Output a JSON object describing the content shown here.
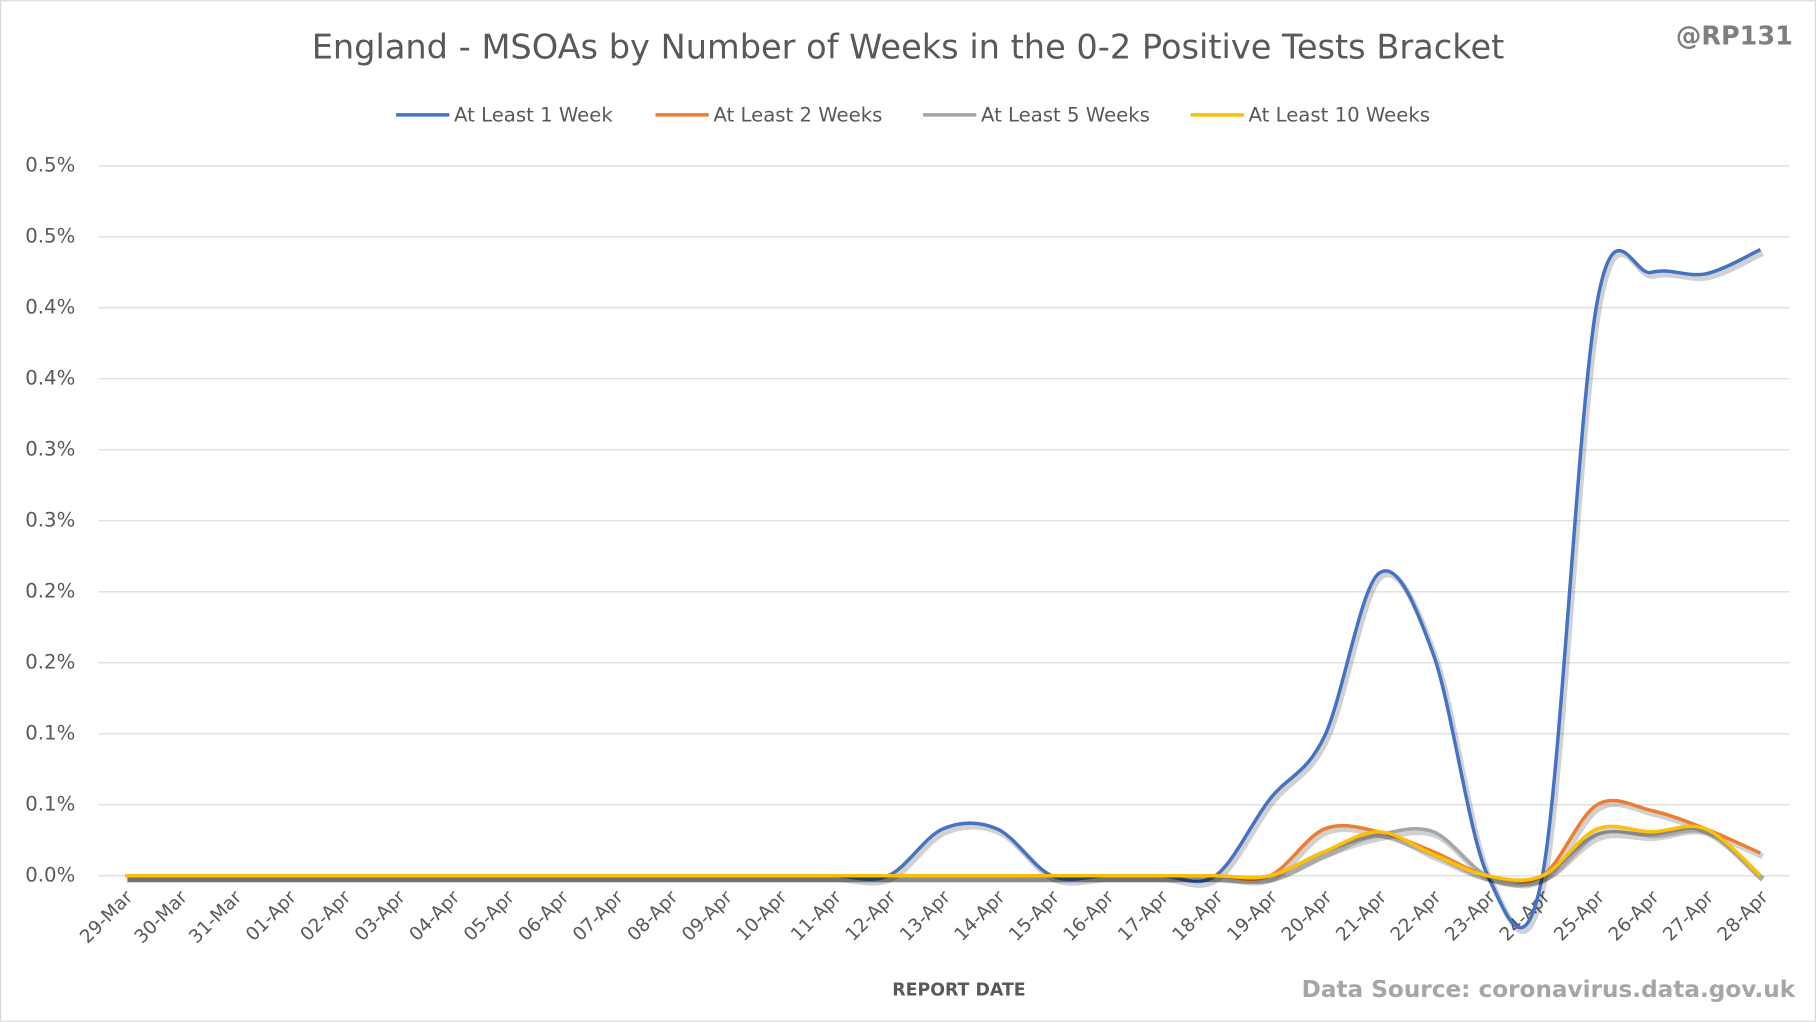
{
  "chart_data": {
    "type": "line",
    "title": "England - MSOAs by Number of Weeks in the 0-2 Positive Tests Bracket",
    "annotation": "@RP131",
    "source": "Data Source: coronavirus.data.gov.uk",
    "x_label": "REPORT DATE",
    "categories": [
      "29-Mar",
      "30-Mar",
      "31-Mar",
      "01-Apr",
      "02-Apr",
      "03-Apr",
      "04-Apr",
      "05-Apr",
      "06-Apr",
      "07-Apr",
      "08-Apr",
      "09-Apr",
      "10-Apr",
      "11-Apr",
      "12-Apr",
      "13-Apr",
      "14-Apr",
      "15-Apr",
      "16-Apr",
      "17-Apr",
      "18-Apr",
      "19-Apr",
      "20-Apr",
      "21-Apr",
      "22-Apr",
      "23-Apr",
      "24-Apr",
      "25-Apr",
      "26-Apr",
      "27-Apr",
      "28-Apr"
    ],
    "series": [
      {
        "name": "At Least 1 Week",
        "color": "#4472c4",
        "values": [
          0,
          0,
          0,
          0,
          0,
          0,
          0,
          0,
          0,
          0,
          0,
          0,
          0,
          0,
          0,
          0.033,
          0.033,
          0,
          0,
          0,
          0,
          0.054,
          0.098,
          0.213,
          0.156,
          0,
          0,
          0.403,
          0.425,
          0.424,
          0.441
        ]
      },
      {
        "name": "At Least 2 Weeks",
        "color": "#ed7d31",
        "values": [
          0,
          0,
          0,
          0,
          0,
          0,
          0,
          0,
          0,
          0,
          0,
          0,
          0,
          0,
          0,
          0,
          0,
          0,
          0,
          0,
          0,
          0,
          0.033,
          0.031,
          0.017,
          0,
          0,
          0.05,
          0.046,
          0.033,
          0.016
        ]
      },
      {
        "name": "At Least 5 Weeks",
        "color": "#a5a5a5",
        "values": [
          0,
          0,
          0,
          0,
          0,
          0,
          0,
          0,
          0,
          0,
          0,
          0,
          0,
          0,
          0,
          0,
          0,
          0,
          0,
          0,
          0,
          0,
          0.017,
          0.029,
          0.031,
          0,
          0,
          0.029,
          0.029,
          0.032,
          0
        ]
      },
      {
        "name": "At Least 10 Weeks",
        "color": "#ffc000",
        "values": [
          0,
          0,
          0,
          0,
          0,
          0,
          0,
          0,
          0,
          0,
          0,
          0,
          0,
          0,
          0,
          0,
          0,
          0,
          0,
          0,
          0,
          0,
          0.017,
          0.031,
          0.015,
          0,
          0,
          0.033,
          0.031,
          0.033,
          0
        ]
      }
    ],
    "ylim": [
      0,
      0.5
    ],
    "yticks": [
      {
        "value": 0,
        "label": "0.0%"
      },
      {
        "value": 0.05,
        "label": "0.1%"
      },
      {
        "value": 0.1,
        "label": "0.1%"
      },
      {
        "value": 0.15,
        "label": "0.2%"
      },
      {
        "value": 0.2,
        "label": "0.2%"
      },
      {
        "value": 0.25,
        "label": "0.3%"
      },
      {
        "value": 0.3,
        "label": "0.3%"
      },
      {
        "value": 0.35,
        "label": "0.4%"
      },
      {
        "value": 0.4,
        "label": "0.4%"
      },
      {
        "value": 0.45,
        "label": "0.5%"
      },
      {
        "value": 0.5,
        "label": "0.5%"
      }
    ],
    "grid": true,
    "legend": "top"
  }
}
